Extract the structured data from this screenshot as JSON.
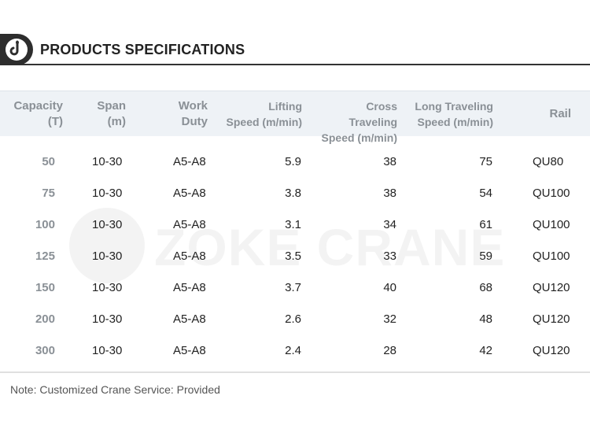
{
  "title": "PRODUCTS SPECIFICATIONS",
  "watermark": "ZOKE CRANE",
  "icons": {
    "logo": "crane-hook-icon"
  },
  "colors": {
    "header_bg": "#eef2f6",
    "header_text": "#8a9096",
    "badge": "#2d2d2d"
  },
  "table": {
    "columns": [
      {
        "line1": "Capacity",
        "line2": "(T)"
      },
      {
        "line1": "Span",
        "line2": "(m)"
      },
      {
        "line1": "Work",
        "line2": "Duty"
      },
      {
        "line1": "Lifting",
        "line2": "Speed (m/min)"
      },
      {
        "line1": "Cross Traveling",
        "line2": "Speed (m/min)"
      },
      {
        "line1": "Long Traveling",
        "line2": "Speed (m/min)"
      },
      {
        "line1": "Rail",
        "line2": ""
      }
    ],
    "rows": [
      [
        "50",
        "10-30",
        "A5-A8",
        "5.9",
        "38",
        "75",
        "QU80"
      ],
      [
        "75",
        "10-30",
        "A5-A8",
        "3.8",
        "38",
        "54",
        "QU100"
      ],
      [
        "100",
        "10-30",
        "A5-A8",
        "3.1",
        "34",
        "61",
        "QU100"
      ],
      [
        "125",
        "10-30",
        "A5-A8",
        "3.5",
        "33",
        "59",
        "QU100"
      ],
      [
        "150",
        "10-30",
        "A5-A8",
        "3.7",
        "40",
        "68",
        "QU120"
      ],
      [
        "200",
        "10-30",
        "A5-A8",
        "2.6",
        "32",
        "48",
        "QU120"
      ],
      [
        "300",
        "10-30",
        "A5-A8",
        "2.4",
        "28",
        "42",
        "QU120"
      ]
    ]
  },
  "note": "Note: Customized Crane Service: Provided"
}
